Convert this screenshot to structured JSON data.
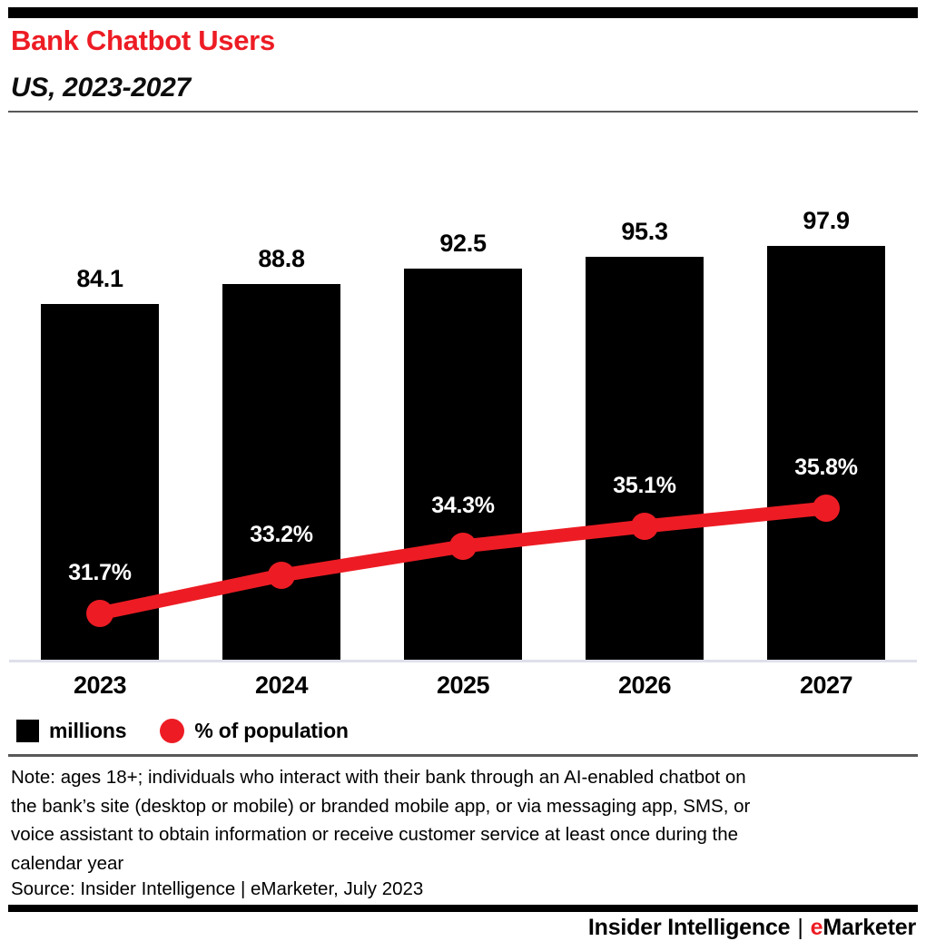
{
  "header": {
    "title": "Bank Chatbot Users",
    "subtitle": "US, 2023-2027"
  },
  "colors": {
    "brand_red": "#ed1c24",
    "bar_black": "#000000",
    "axis_gray": "#dde0ea",
    "rule_gray": "#58585a"
  },
  "chart_data": {
    "type": "bar",
    "subtype": "bar-with-line-overlay",
    "title": "Bank Chatbot Users",
    "subtitle": "US, 2023-2027",
    "categories": [
      "2023",
      "2024",
      "2025",
      "2026",
      "2027"
    ],
    "series": [
      {
        "name": "millions",
        "type": "bar",
        "color": "#000000",
        "values": [
          84.1,
          88.8,
          92.5,
          95.3,
          97.9
        ],
        "labels": [
          "84.1",
          "88.8",
          "92.5",
          "95.3",
          "97.9"
        ]
      },
      {
        "name": "% of population",
        "type": "line",
        "color": "#ed1c24",
        "values": [
          31.7,
          33.2,
          34.3,
          35.1,
          35.8
        ],
        "labels": [
          "31.7%",
          "33.2%",
          "34.3%",
          "35.1%",
          "35.8%"
        ]
      }
    ],
    "bar_axis_range": [
      0,
      105
    ],
    "line_axis_visible_range": [
      31.7,
      35.8
    ],
    "grid": false,
    "legend_position": "bottom-left",
    "xlabel": "",
    "ylabel": ""
  },
  "note_lines": [
    "Note: ages 18+; individuals who interact with their bank through an AI-enabled chatbot on",
    "the bank’s site (desktop or mobile) or branded mobile app, or via messaging app, SMS, or",
    "voice assistant to obtain information or receive customer service at least once during the",
    "calendar year"
  ],
  "note": "Note: ages 18+; individuals who interact with their bank through an AI-enabled chatbot on the bank’s site (desktop or mobile) or branded mobile app, or via messaging app, SMS, or voice assistant to obtain information or receive customer service at least once during the calendar year",
  "source": "Source: Insider Intelligence | eMarketer, July 2023",
  "footer": {
    "brand_left": "Insider Intelligence",
    "separator": "|",
    "brand_e": "e",
    "brand_rest": "Marketer"
  }
}
